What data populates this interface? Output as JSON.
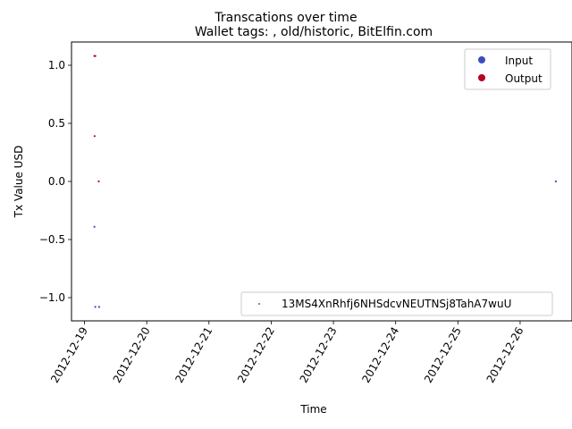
{
  "chart_data": {
    "type": "scatter",
    "suptitle": "Transcations over time",
    "title": "Wallet tags: , old/historic, BitElfin.com",
    "xlabel": "Time",
    "ylabel": "Tx Value USD",
    "x_ticks": [
      "2012-12-19",
      "2012-12-20",
      "2012-12-21",
      "2012-12-22",
      "2012-12-23",
      "2012-12-24",
      "2012-12-25",
      "2012-12-26"
    ],
    "y_ticks": [
      "1.0",
      "0.5",
      "0.0",
      "−0.5",
      "−1.0"
    ],
    "y_tick_values": [
      1.0,
      0.5,
      0.0,
      -0.5,
      -1.0
    ],
    "xlim": [
      "2012-12-18 19:00",
      "2012-12-26 20:00"
    ],
    "ylim": [
      -1.2,
      1.2
    ],
    "grid": false,
    "legends": [
      {
        "placement": "upper-right",
        "entries": [
          {
            "label": "Input",
            "color": "#3b4cc0"
          },
          {
            "label": "Output",
            "color": "#b40426"
          }
        ]
      },
      {
        "placement": "lower-right",
        "entries": [
          {
            "label": "13MS4XnRhfj6NHSdcvNEUTNSj8TahA7wuU",
            "color": "#1f77b4"
          }
        ]
      }
    ],
    "series": [
      {
        "name": "Output",
        "color": "#b40426",
        "points": [
          {
            "x": "2012-12-19 03:50",
            "y": 1.08
          },
          {
            "x": "2012-12-19 04:10",
            "y": 1.08
          },
          {
            "x": "2012-12-19 03:55",
            "y": 0.39
          },
          {
            "x": "2012-12-19 05:30",
            "y": 0.0
          }
        ]
      },
      {
        "name": "Input",
        "color": "#3b4cc0",
        "points": [
          {
            "x": "2012-12-19 03:50",
            "y": -0.39
          },
          {
            "x": "2012-12-19 04:10",
            "y": -1.08
          },
          {
            "x": "2012-12-19 05:40",
            "y": -1.08
          },
          {
            "x": "2012-12-26 13:45",
            "y": 0.0
          }
        ]
      }
    ]
  }
}
